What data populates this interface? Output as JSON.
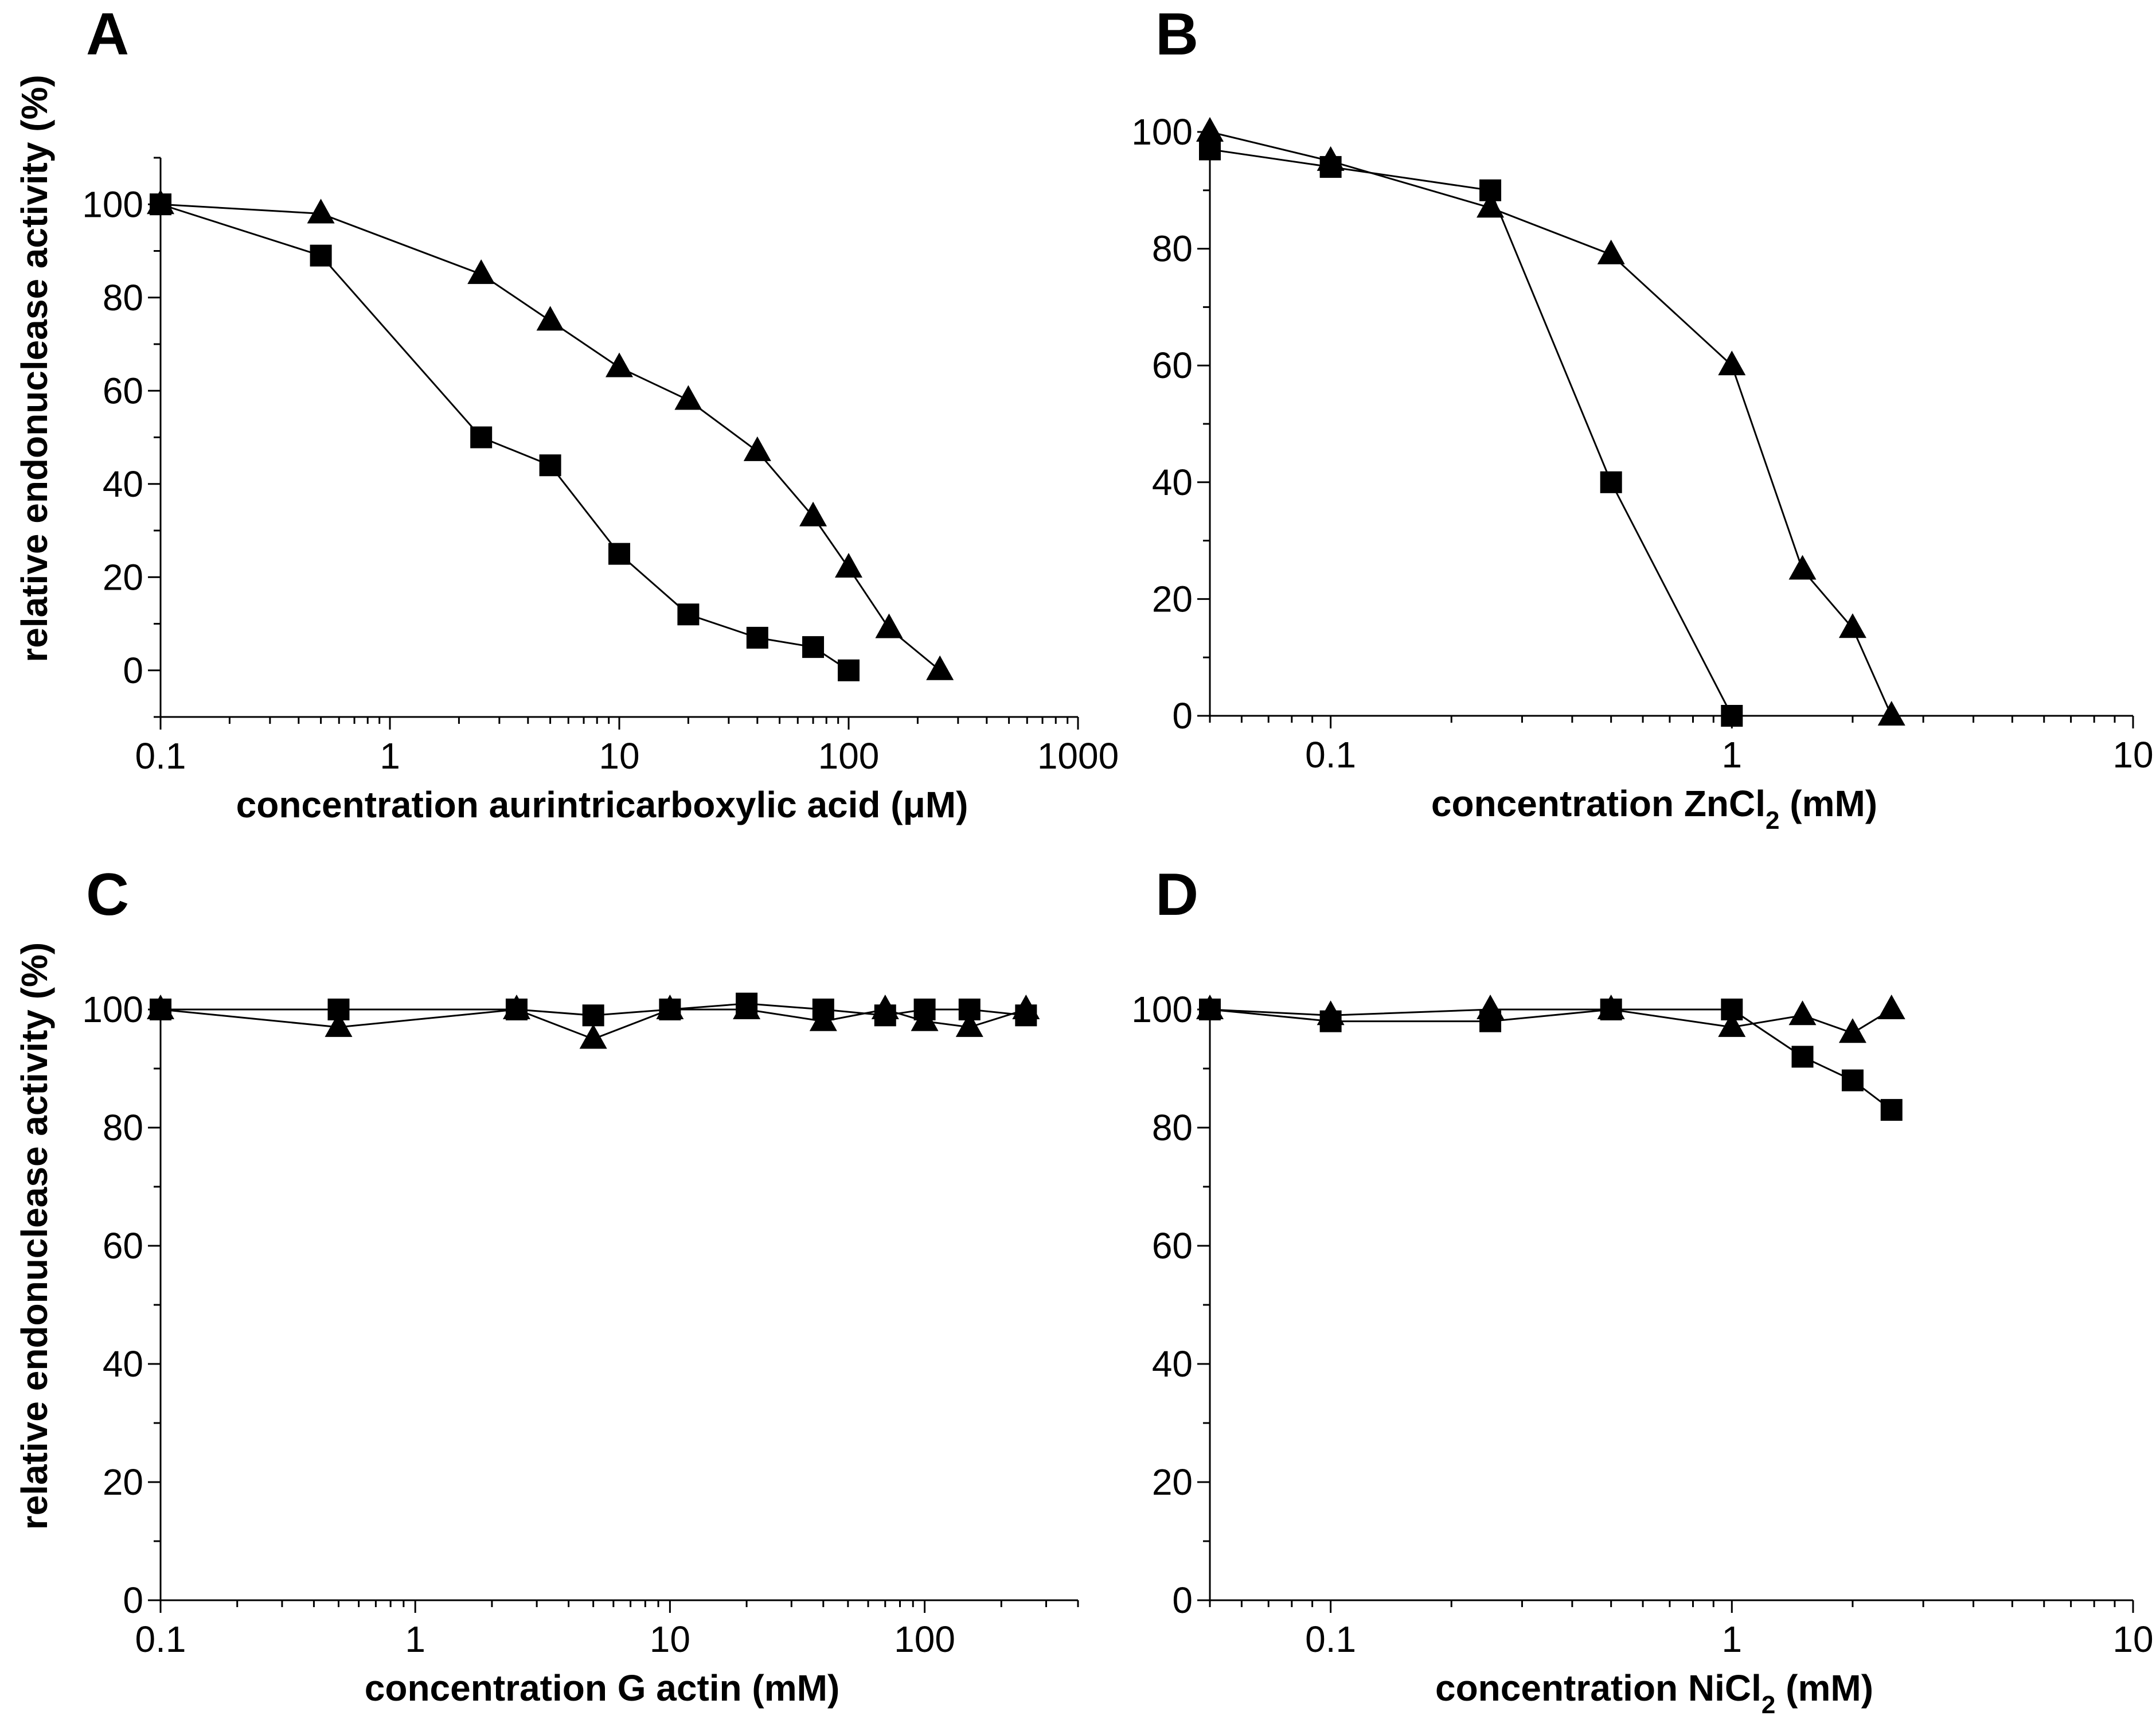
{
  "figure": {
    "ylabel": "relative endonuclease activity (%)",
    "series_styles": [
      {
        "name": "squares",
        "marker": "square",
        "color": "#000000"
      },
      {
        "name": "triangles",
        "marker": "triangle",
        "color": "#000000"
      }
    ]
  },
  "chart_data": [
    {
      "panel": "A",
      "type": "line",
      "xscale": "log",
      "xlabel": "concentration aurintricarboxylic acid (μM)",
      "ylabel": "relative endonuclease activity (%)",
      "xlim": [
        0.1,
        1000
      ],
      "ylim": [
        -10,
        110
      ],
      "xticks": [
        0.1,
        1,
        10,
        100,
        1000
      ],
      "xtick_labels": [
        "0.1",
        "1",
        "10",
        "100",
        "1000"
      ],
      "yticks": [
        0,
        20,
        40,
        60,
        80,
        100
      ],
      "ytick_labels": [
        "0",
        "20",
        "40",
        "60",
        "80",
        "100"
      ],
      "series": [
        {
          "name": "squares",
          "marker": "square",
          "x": [
            0.1,
            0.5,
            2.5,
            5,
            10,
            20,
            40,
            70,
            100
          ],
          "y": [
            100,
            89,
            50,
            44,
            25,
            12,
            7,
            5,
            0
          ]
        },
        {
          "name": "triangles",
          "marker": "triangle",
          "x": [
            0.1,
            0.5,
            2.5,
            5,
            10,
            20,
            40,
            70,
            100,
            150,
            250
          ],
          "y": [
            100,
            98,
            85,
            75,
            65,
            58,
            47,
            33,
            22,
            9,
            0
          ]
        }
      ]
    },
    {
      "panel": "B",
      "type": "line",
      "xscale": "log",
      "xlabel_main": "concentration ZnCl",
      "xlabel_sub": "2",
      "xlabel_tail": " (mM)",
      "ylabel": "",
      "xlim": [
        0.05,
        10
      ],
      "ylim": [
        0,
        100
      ],
      "xticks": [
        0.1,
        1,
        10
      ],
      "xtick_labels": [
        "0.1",
        "1",
        "10"
      ],
      "yticks": [
        0,
        20,
        40,
        60,
        80,
        100
      ],
      "ytick_labels": [
        "0",
        "20",
        "40",
        "60",
        "80",
        "100"
      ],
      "series": [
        {
          "name": "squares",
          "marker": "square",
          "x": [
            0.05,
            0.1,
            0.25,
            0.5,
            1
          ],
          "y": [
            97,
            94,
            90,
            40,
            0
          ]
        },
        {
          "name": "triangles",
          "marker": "triangle",
          "x": [
            0.05,
            0.1,
            0.25,
            0.5,
            1,
            1.5,
            2,
            2.5
          ],
          "y": [
            100,
            95,
            87,
            79,
            60,
            25,
            15,
            0
          ]
        }
      ]
    },
    {
      "panel": "C",
      "type": "line",
      "xscale": "log",
      "xlabel": "concentration G actin (mM)",
      "ylabel": "relative endonuclease activity (%)",
      "xlim": [
        0.1,
        400
      ],
      "ylim": [
        0,
        100
      ],
      "xticks": [
        0.1,
        1,
        10,
        100
      ],
      "xtick_labels": [
        "0.1",
        "1",
        "10",
        "100"
      ],
      "yticks": [
        0,
        20,
        40,
        60,
        80,
        100
      ],
      "ytick_labels": [
        "0",
        "20",
        "40",
        "60",
        "80",
        "100"
      ],
      "series": [
        {
          "name": "squares",
          "marker": "square",
          "x": [
            0.1,
            0.5,
            2.5,
            5,
            10,
            20,
            40,
            70,
            100,
            150,
            250
          ],
          "y": [
            100,
            100,
            100,
            99,
            100,
            101,
            100,
            99,
            100,
            100,
            99
          ]
        },
        {
          "name": "triangles",
          "marker": "triangle",
          "x": [
            0.1,
            0.5,
            2.5,
            5,
            10,
            20,
            40,
            70,
            100,
            150,
            250
          ],
          "y": [
            100,
            97,
            100,
            95,
            100,
            100,
            98,
            100,
            98,
            97,
            100
          ]
        }
      ]
    },
    {
      "panel": "D",
      "type": "line",
      "xscale": "log",
      "xlabel_main": "concentration NiCl",
      "xlabel_sub": "2",
      "xlabel_tail": " (mM)",
      "ylabel": "",
      "xlim": [
        0.05,
        10
      ],
      "ylim": [
        0,
        100
      ],
      "xticks": [
        0.1,
        1,
        10
      ],
      "xtick_labels": [
        "0.1",
        "1",
        "10"
      ],
      "yticks": [
        0,
        20,
        40,
        60,
        80,
        100
      ],
      "ytick_labels": [
        "0",
        "20",
        "40",
        "60",
        "80",
        "100"
      ],
      "series": [
        {
          "name": "squares",
          "marker": "square",
          "x": [
            0.05,
            0.1,
            0.25,
            0.5,
            1,
            1.5,
            2,
            2.5
          ],
          "y": [
            100,
            98,
            98,
            100,
            100,
            92,
            88,
            83
          ]
        },
        {
          "name": "triangles",
          "marker": "triangle",
          "x": [
            0.05,
            0.1,
            0.25,
            0.5,
            1,
            1.5,
            2,
            2.5
          ],
          "y": [
            100,
            99,
            100,
            100,
            97,
            99,
            96,
            100
          ]
        }
      ]
    }
  ]
}
